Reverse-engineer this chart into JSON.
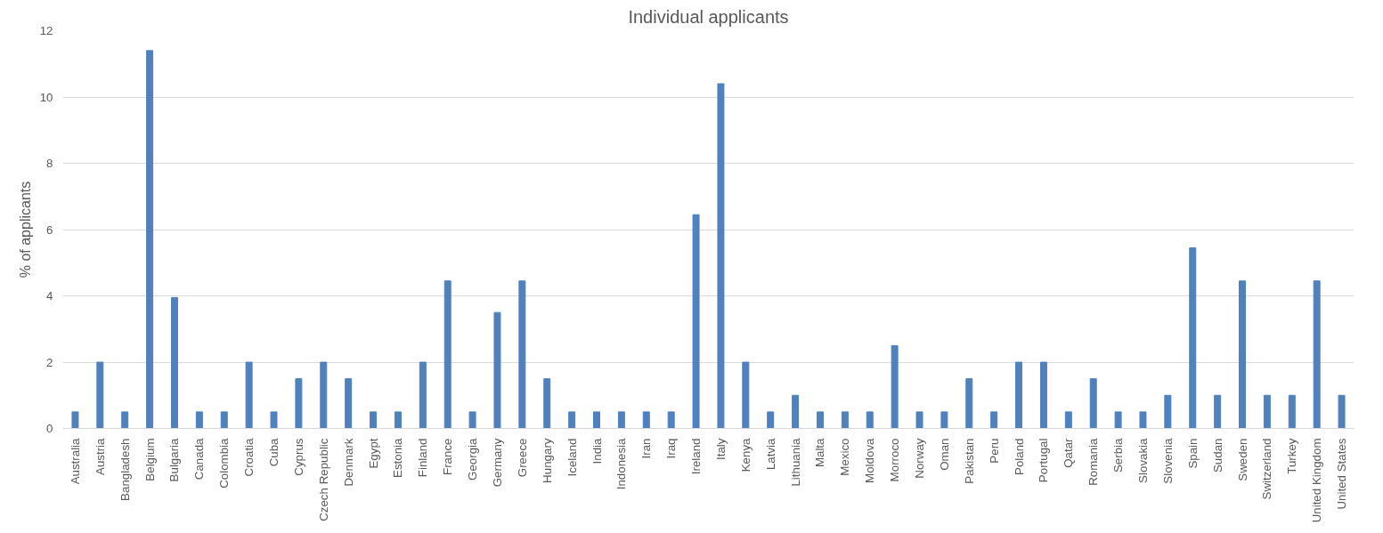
{
  "chart_data": {
    "type": "bar",
    "title": "Individual applicants",
    "ylabel": "% of applicants",
    "categories": [
      "Australia",
      "Austria",
      "Bangladesh",
      "Belgium",
      "Bulgaria",
      "Canada",
      "Colombia",
      "Croatia",
      "Cuba",
      "Cyprus",
      "Czech Republic",
      "Denmark",
      "Egypt",
      "Estonia",
      "Finland",
      "France",
      "Georgia",
      "Germany",
      "Greece",
      "Hungary",
      "Iceland",
      "India",
      "Indonesia",
      "Iran",
      "Iraq",
      "Ireland",
      "Italy",
      "Kenya",
      "Latvia",
      "Lithuania",
      "Malta",
      "Mexico",
      "Moldova",
      "Morroco",
      "Norway",
      "Oman",
      "Pakistan",
      "Peru",
      "Poland",
      "Portugal",
      "Qatar",
      "Romania",
      "Serbia",
      "Slovakia",
      "Slovenia",
      "Spain",
      "Sudan",
      "Sweden",
      "Switzerland",
      "Turkey",
      "United Kingdom",
      "United States"
    ],
    "values": [
      0.5,
      2,
      0.5,
      11.4,
      3.95,
      0.5,
      0.5,
      2,
      0.5,
      1.5,
      2,
      1.5,
      0.5,
      0.5,
      2,
      4.45,
      0.5,
      3.5,
      4.45,
      1.5,
      0.5,
      0.5,
      0.5,
      0.5,
      0.5,
      6.45,
      10.4,
      2,
      0.5,
      1,
      0.5,
      0.5,
      0.5,
      2.5,
      0.5,
      0.5,
      1.5,
      0.5,
      2,
      2,
      0.5,
      1.5,
      0.5,
      0.5,
      1,
      5.45,
      1,
      4.45,
      1,
      1,
      4.45,
      1
    ],
    "color": "#4f81bd",
    "ylim": [
      0,
      12
    ],
    "yticks": [
      0,
      2,
      4,
      6,
      8,
      10,
      12
    ],
    "grid": "y"
  }
}
